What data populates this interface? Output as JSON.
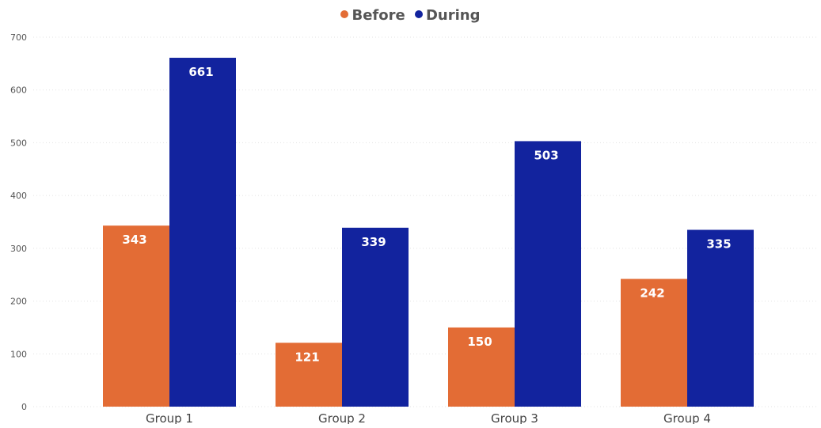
{
  "chart_data": {
    "type": "bar",
    "categories": [
      "Group 1",
      "Group 2",
      "Group 3",
      "Group 4"
    ],
    "series": [
      {
        "name": "Before",
        "values": [
          343,
          121,
          150,
          242
        ],
        "color": "#E36C35"
      },
      {
        "name": "During",
        "values": [
          661,
          339,
          503,
          335
        ],
        "color": "#12239E"
      }
    ],
    "ylim": [
      0,
      700
    ],
    "yticks": [
      "0",
      "100",
      "200",
      "300",
      "400",
      "500",
      "600",
      "700"
    ],
    "grid": true,
    "legend_position": "top-center",
    "data_labels": true
  }
}
